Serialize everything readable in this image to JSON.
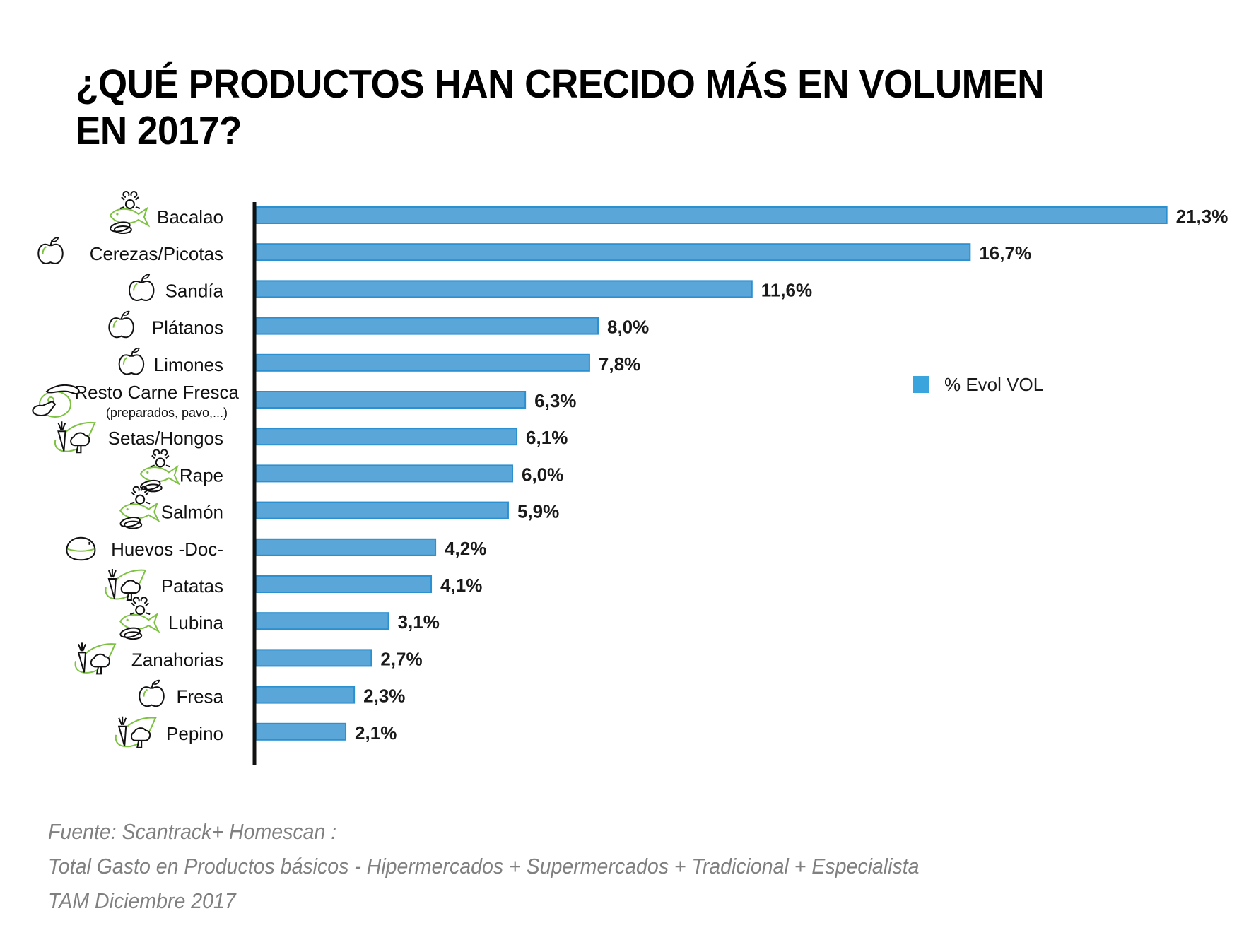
{
  "title": {
    "line1": "¿QUÉ PRODUCTOS HAN CRECIDO MÁS EN VOLUMEN",
    "line2": "EN 2017?"
  },
  "colors": {
    "bar": "#5aa6d8",
    "bar_border": "#2b8fd0",
    "legend_swatch": "#39a5dc",
    "icon_green": "#7dc242",
    "axis": "#111111"
  },
  "footer": {
    "line1": "Fuente: Scantrack+ Homescan :",
    "line2": "Total Gasto en Productos básicos - Hipermercados + Supermercados + Tradicional + Especialista",
    "line3": "TAM Diciembre 2017"
  },
  "chart_data": {
    "type": "bar",
    "orientation": "horizontal",
    "title": "¿QUÉ PRODUCTOS HAN CRECIDO MÁS EN VOLUMEN EN 2017?",
    "xlabel": "",
    "ylabel": "",
    "xlim": [
      0,
      21.3
    ],
    "grid": false,
    "legend": {
      "position": "right",
      "entries": [
        "% Evol VOL"
      ]
    },
    "categories": [
      {
        "label": "Bacalao",
        "sublabel": "",
        "icon": "seafood-icon"
      },
      {
        "label": "Cerezas/Picotas",
        "sublabel": "",
        "icon": "fruit-icon"
      },
      {
        "label": "Sandía",
        "sublabel": "",
        "icon": "fruit-icon"
      },
      {
        "label": "Plátanos",
        "sublabel": "",
        "icon": "fruit-icon"
      },
      {
        "label": "Limones",
        "sublabel": "",
        "icon": "fruit-icon"
      },
      {
        "label": "Resto Carne Fresca",
        "sublabel": "(preparados, pavo,...)",
        "icon": "meat-icon"
      },
      {
        "label": "Setas/Hongos",
        "sublabel": "",
        "icon": "vegetable-icon"
      },
      {
        "label": "Rape",
        "sublabel": "",
        "icon": "seafood-icon"
      },
      {
        "label": "Salmón",
        "sublabel": "",
        "icon": "seafood-icon"
      },
      {
        "label": "Huevos -Doc-",
        "sublabel": "",
        "icon": "egg-icon"
      },
      {
        "label": "Patatas",
        "sublabel": "",
        "icon": "vegetable-icon"
      },
      {
        "label": "Lubina",
        "sublabel": "",
        "icon": "seafood-icon"
      },
      {
        "label": "Zanahorias",
        "sublabel": "",
        "icon": "vegetable-icon"
      },
      {
        "label": "Fresa",
        "sublabel": "",
        "icon": "fruit-icon"
      },
      {
        "label": "Pepino",
        "sublabel": "",
        "icon": "vegetable-icon"
      }
    ],
    "series": [
      {
        "name": "% Evol VOL",
        "values": [
          21.3,
          16.7,
          11.6,
          8.0,
          7.8,
          6.3,
          6.1,
          6.0,
          5.9,
          4.2,
          4.1,
          3.1,
          2.7,
          2.3,
          2.1
        ],
        "labels": [
          "21,3%",
          "16,7%",
          "11,6%",
          "8,0%",
          "7,8%",
          "6,3%",
          "6,1%",
          "6,0%",
          "5,9%",
          "4,2%",
          "4,1%",
          "3,1%",
          "2,7%",
          "2,3%",
          "2,1%"
        ]
      }
    ]
  }
}
